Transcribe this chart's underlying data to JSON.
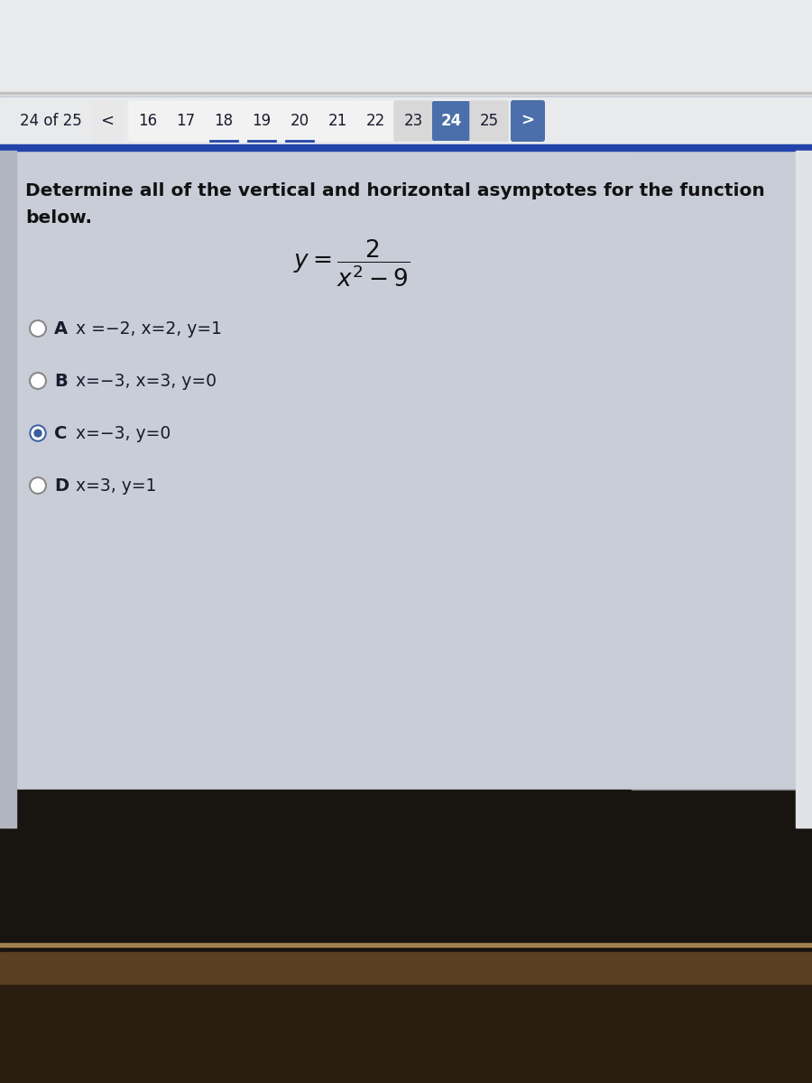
{
  "page_indicator": "24 of 25",
  "nav_numbers": [
    "16",
    "17",
    "18",
    "19",
    "20",
    "21",
    "22",
    "23",
    "24",
    "25"
  ],
  "current_page": "24",
  "options": [
    {
      "label": "A",
      "text": "x =−2, x=2, y=1",
      "selected": false
    },
    {
      "label": "B",
      "text": "x=−3, x=3, y=0",
      "selected": false
    },
    {
      "label": "C",
      "text": "x=−3, y=0",
      "selected": true
    },
    {
      "label": "D",
      "text": "x=3, y=1",
      "selected": false
    }
  ],
  "bg_browser": "#e8eaec",
  "bg_nav": "#f0f0f0",
  "bg_content": "#c8cdd8",
  "nav_highlight_color": "#4a6faa",
  "blue_bar_color": "#2244aa",
  "text_color": "#1a1a2e",
  "selected_fill": "#3a5fa0",
  "bottom_dark": "#1a1410",
  "bottom_mid": "#3a2a1a",
  "bottom_wood": "#6a5030",
  "right_side_bg": "#d8dce4",
  "scrollbar_bg": "#e0e2e8"
}
